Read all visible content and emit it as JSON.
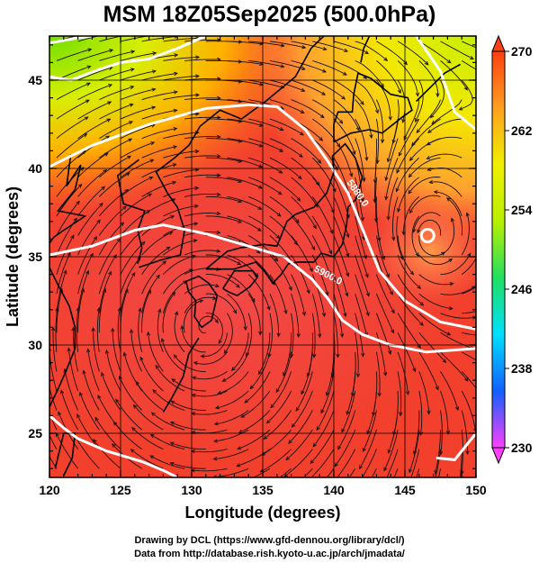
{
  "title": "MSM 18Z05Sep2025 (500.0hPa)",
  "map": {
    "lon_range": [
      120,
      150
    ],
    "lat_range": [
      22.5,
      47.5
    ],
    "xlabel": "Longitude (degrees)",
    "ylabel": "Latitude  (degrees)",
    "lon_ticks": [
      120,
      125,
      130,
      135,
      140,
      145,
      150
    ],
    "lat_ticks": [
      25,
      30,
      35,
      40,
      45
    ],
    "grid": true
  },
  "colorbar": {
    "min": 230,
    "max": 270,
    "ticks": [
      230,
      238,
      246,
      254,
      262,
      270
    ],
    "colors": [
      "#ff40ff",
      "#1060ff",
      "#00e0ff",
      "#20e060",
      "#b8f000",
      "#f0f000",
      "#ffa020",
      "#ff4010"
    ]
  },
  "contour_labels": [
    {
      "text": "5880.0",
      "lon": 141.5,
      "lat": 38.5,
      "rotate": 55
    },
    {
      "text": "5900.0",
      "lon": 139.5,
      "lat": 33.8,
      "rotate": 28
    }
  ],
  "credits": {
    "line1": "Drawing by DCL (https://www.gfd-dennou.org/library/dcl/)",
    "line2": "Data from http://database.rish.kyoto-u.ac.jp/arch/jmadata/"
  }
}
